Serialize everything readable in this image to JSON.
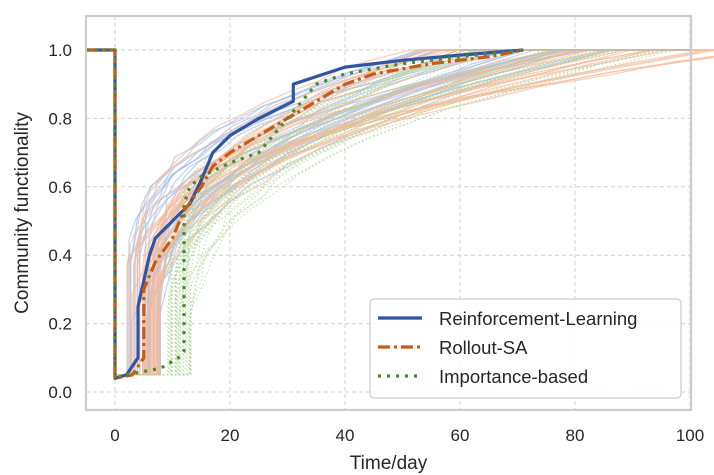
{
  "chart_data": {
    "type": "line",
    "title": "",
    "xlabel": "Time/day",
    "ylabel": "Community functionality",
    "xlim": [
      -5,
      100
    ],
    "ylim": [
      -0.05,
      1.1
    ],
    "xticks": [
      0,
      20,
      40,
      60,
      80,
      100
    ],
    "yticks": [
      0.0,
      0.2,
      0.4,
      0.6,
      0.8,
      1.0
    ],
    "xtick_labels": [
      "0",
      "20",
      "40",
      "60",
      "80",
      "100"
    ],
    "ytick_labels": [
      "0.0",
      "0.2",
      "0.4",
      "0.6",
      "0.8",
      "1.0"
    ],
    "grid": true,
    "legend_position": "lower-right",
    "colors": {
      "rl": "#2f55a4",
      "rollout": "#cc5a14",
      "importance": "#4a8a2c",
      "rl_light": "#a8bfe6",
      "rollout_light": "#f6b996",
      "importance_light": "#a9d68f",
      "grid": "#d0d0d0",
      "frame": "#cccccc"
    },
    "series": [
      {
        "name": "Reinforcement-Learning",
        "style": "solid",
        "x": [
          -5,
          0,
          0,
          2,
          4,
          4,
          6,
          7,
          10,
          13,
          15,
          17,
          20,
          25,
          31,
          31,
          40,
          50,
          60,
          71
        ],
        "y": [
          1.0,
          1.0,
          0.04,
          0.05,
          0.1,
          0.25,
          0.4,
          0.45,
          0.5,
          0.55,
          0.62,
          0.7,
          0.75,
          0.8,
          0.85,
          0.9,
          0.95,
          0.97,
          0.985,
          1.0
        ]
      },
      {
        "name": "Rollout-SA",
        "style": "dashdot",
        "x": [
          -5,
          0,
          0,
          3,
          5,
          5,
          7,
          10,
          12,
          15,
          17,
          20,
          25,
          30,
          35,
          40,
          45,
          55,
          65,
          71
        ],
        "y": [
          1.0,
          1.0,
          0.04,
          0.05,
          0.1,
          0.3,
          0.38,
          0.45,
          0.53,
          0.6,
          0.66,
          0.7,
          0.75,
          0.8,
          0.85,
          0.9,
          0.93,
          0.96,
          0.98,
          1.0
        ]
      },
      {
        "name": "Importance-based",
        "style": "dotted",
        "x": [
          -5,
          0,
          0,
          2,
          5,
          8,
          11,
          12,
          12,
          13,
          15,
          20,
          25,
          30,
          35,
          40,
          50,
          60,
          71
        ],
        "y": [
          1.0,
          1.0,
          0.04,
          0.05,
          0.06,
          0.07,
          0.1,
          0.12,
          0.55,
          0.6,
          0.63,
          0.67,
          0.7,
          0.8,
          0.9,
          0.93,
          0.96,
          0.98,
          1.0
        ]
      }
    ],
    "background_ensembles": {
      "description": "many faint sample trajectories per method",
      "count_per_method": 30
    }
  }
}
